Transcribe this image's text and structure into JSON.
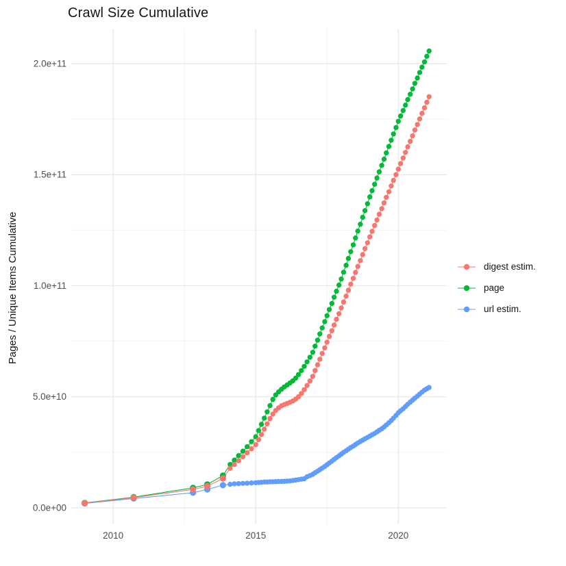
{
  "page": {
    "background_color": "#ffffff"
  },
  "chart_data": {
    "type": "line",
    "title": "Crawl Size Cumulative",
    "xlabel": "",
    "ylabel": "Pages / Unique Items Cumulative",
    "value_unit": "1e9 (values stored in billions of items)",
    "grid": {
      "on": true,
      "major_color": "#e7e7e7",
      "minor_color": "#f2f2f2"
    },
    "legend_position": "right",
    "x_axis": {
      "range": [
        2008.53,
        2021.7
      ],
      "ticks": [
        2010,
        2015,
        2020
      ],
      "tick_labels": [
        "2010",
        "2015",
        "2020"
      ],
      "minor_ticks": [
        2012.5,
        2017.5
      ]
    },
    "y_axis": {
      "range": [
        -7.4,
        215.7
      ],
      "ticks": [
        0,
        50,
        100,
        150,
        200
      ],
      "tick_labels": [
        "0.0e+00",
        "5.0e+10",
        "1.0e+11",
        "1.5e+11",
        "2.0e+11"
      ],
      "minor_ticks": [
        25,
        75,
        125,
        175
      ]
    },
    "series": [
      {
        "name": "digest estim.",
        "color": "#F8766D",
        "points": [
          [
            2009.0,
            2.1
          ],
          [
            2010.72,
            4.6
          ],
          [
            2012.8,
            8.3
          ],
          [
            2013.3,
            9.7
          ],
          [
            2013.85,
            13.2
          ],
          [
            2014.1,
            17.8
          ],
          [
            2014.25,
            19.5
          ],
          [
            2014.4,
            21.2
          ],
          [
            2014.55,
            23.0
          ],
          [
            2014.7,
            24.8
          ],
          [
            2014.85,
            26.6
          ],
          [
            2015.0,
            28.4
          ],
          [
            2015.1,
            30.7
          ],
          [
            2015.2,
            33.0
          ],
          [
            2015.3,
            35.4
          ],
          [
            2015.4,
            37.8
          ],
          [
            2015.5,
            40.2
          ],
          [
            2015.6,
            42.2
          ],
          [
            2015.7,
            43.8
          ],
          [
            2015.8,
            45.0
          ],
          [
            2015.9,
            45.9
          ],
          [
            2016.0,
            46.5
          ],
          [
            2016.1,
            47.0
          ],
          [
            2016.2,
            47.5
          ],
          [
            2016.3,
            48.1
          ],
          [
            2016.4,
            48.9
          ],
          [
            2016.5,
            50.0
          ],
          [
            2016.6,
            51.5
          ],
          [
            2016.7,
            53.2
          ],
          [
            2016.8,
            55.1
          ],
          [
            2016.9,
            57.1
          ],
          [
            2017.0,
            59.2
          ],
          [
            2017.08,
            61.8
          ],
          [
            2017.17,
            64.4
          ],
          [
            2017.25,
            66.9
          ],
          [
            2017.33,
            69.5
          ],
          [
            2017.42,
            72.0
          ],
          [
            2017.5,
            74.6
          ],
          [
            2017.58,
            77.2
          ],
          [
            2017.67,
            79.7
          ],
          [
            2017.75,
            82.3
          ],
          [
            2017.83,
            84.9
          ],
          [
            2017.92,
            87.4
          ],
          [
            2018.0,
            90.0
          ],
          [
            2018.08,
            92.7
          ],
          [
            2018.17,
            95.3
          ],
          [
            2018.25,
            98.0
          ],
          [
            2018.33,
            100.7
          ],
          [
            2018.42,
            103.3
          ],
          [
            2018.5,
            106.0
          ],
          [
            2018.58,
            108.7
          ],
          [
            2018.67,
            111.3
          ],
          [
            2018.75,
            114.0
          ],
          [
            2018.83,
            116.7
          ],
          [
            2018.92,
            119.3
          ],
          [
            2019.0,
            122.0
          ],
          [
            2019.08,
            124.5
          ],
          [
            2019.17,
            127.1
          ],
          [
            2019.25,
            129.6
          ],
          [
            2019.33,
            132.2
          ],
          [
            2019.42,
            134.7
          ],
          [
            2019.5,
            137.3
          ],
          [
            2019.58,
            139.8
          ],
          [
            2019.67,
            142.3
          ],
          [
            2019.75,
            144.9
          ],
          [
            2019.83,
            147.4
          ],
          [
            2019.92,
            150.0
          ],
          [
            2020.0,
            152.5
          ],
          [
            2020.08,
            155.0
          ],
          [
            2020.17,
            157.5
          ],
          [
            2020.25,
            160.0
          ],
          [
            2020.33,
            162.5
          ],
          [
            2020.42,
            165.0
          ],
          [
            2020.5,
            167.5
          ],
          [
            2020.58,
            170.1
          ],
          [
            2020.67,
            172.6
          ],
          [
            2020.75,
            175.1
          ],
          [
            2020.83,
            177.6
          ],
          [
            2020.92,
            180.1
          ],
          [
            2021.0,
            182.6
          ],
          [
            2021.08,
            185.1
          ]
        ]
      },
      {
        "name": "page",
        "color": "#00BA38",
        "points": [
          [
            2009.0,
            2.2
          ],
          [
            2010.72,
            4.8
          ],
          [
            2012.8,
            9.0
          ],
          [
            2013.3,
            10.5
          ],
          [
            2013.85,
            14.5
          ],
          [
            2014.1,
            19.5
          ],
          [
            2014.25,
            21.5
          ],
          [
            2014.4,
            23.5
          ],
          [
            2014.55,
            25.5
          ],
          [
            2014.7,
            27.5
          ],
          [
            2014.85,
            29.8
          ],
          [
            2015.0,
            32.0
          ],
          [
            2015.1,
            34.8
          ],
          [
            2015.2,
            37.6
          ],
          [
            2015.3,
            40.4
          ],
          [
            2015.4,
            43.2
          ],
          [
            2015.5,
            46.0
          ],
          [
            2015.6,
            48.8
          ],
          [
            2015.7,
            50.8
          ],
          [
            2015.8,
            52.2
          ],
          [
            2015.9,
            53.4
          ],
          [
            2016.0,
            54.4
          ],
          [
            2016.1,
            55.3
          ],
          [
            2016.2,
            56.2
          ],
          [
            2016.3,
            57.2
          ],
          [
            2016.4,
            58.4
          ],
          [
            2016.5,
            60.0
          ],
          [
            2016.6,
            61.8
          ],
          [
            2016.7,
            63.7
          ],
          [
            2016.8,
            65.7
          ],
          [
            2016.9,
            67.8
          ],
          [
            2017.0,
            70.0
          ],
          [
            2017.08,
            72.8
          ],
          [
            2017.17,
            75.5
          ],
          [
            2017.25,
            78.3
          ],
          [
            2017.33,
            81.0
          ],
          [
            2017.42,
            83.8
          ],
          [
            2017.5,
            86.5
          ],
          [
            2017.58,
            89.3
          ],
          [
            2017.67,
            92.0
          ],
          [
            2017.75,
            94.8
          ],
          [
            2017.83,
            97.5
          ],
          [
            2017.92,
            100.3
          ],
          [
            2018.0,
            103.0
          ],
          [
            2018.08,
            106.1
          ],
          [
            2018.17,
            109.2
          ],
          [
            2018.25,
            112.3
          ],
          [
            2018.33,
            115.3
          ],
          [
            2018.42,
            118.4
          ],
          [
            2018.5,
            121.5
          ],
          [
            2018.58,
            124.6
          ],
          [
            2018.67,
            127.7
          ],
          [
            2018.75,
            130.8
          ],
          [
            2018.83,
            133.8
          ],
          [
            2018.92,
            136.9
          ],
          [
            2019.0,
            140.0
          ],
          [
            2019.08,
            142.8
          ],
          [
            2019.17,
            145.7
          ],
          [
            2019.25,
            148.5
          ],
          [
            2019.33,
            151.3
          ],
          [
            2019.42,
            154.2
          ],
          [
            2019.5,
            157.0
          ],
          [
            2019.58,
            159.8
          ],
          [
            2019.67,
            162.7
          ],
          [
            2019.75,
            165.5
          ],
          [
            2019.83,
            168.3
          ],
          [
            2019.92,
            171.2
          ],
          [
            2020.0,
            174.0
          ],
          [
            2020.08,
            176.4
          ],
          [
            2020.17,
            178.9
          ],
          [
            2020.25,
            181.3
          ],
          [
            2020.33,
            183.8
          ],
          [
            2020.42,
            186.2
          ],
          [
            2020.5,
            188.6
          ],
          [
            2020.58,
            191.1
          ],
          [
            2020.67,
            193.5
          ],
          [
            2020.75,
            196.0
          ],
          [
            2020.83,
            198.4
          ],
          [
            2020.92,
            200.8
          ],
          [
            2021.0,
            203.3
          ],
          [
            2021.08,
            205.7
          ]
        ]
      },
      {
        "name": "url estim.",
        "color": "#619CFF",
        "points": [
          [
            2009.0,
            2.0
          ],
          [
            2010.72,
            4.2
          ],
          [
            2012.8,
            6.8
          ],
          [
            2013.3,
            8.3
          ],
          [
            2013.85,
            10.2
          ],
          [
            2014.1,
            10.6
          ],
          [
            2014.25,
            10.8
          ],
          [
            2014.4,
            10.9
          ],
          [
            2014.55,
            11.0
          ],
          [
            2014.7,
            11.1
          ],
          [
            2014.85,
            11.2
          ],
          [
            2015.0,
            11.3
          ],
          [
            2015.1,
            11.4
          ],
          [
            2015.2,
            11.5
          ],
          [
            2015.3,
            11.6
          ],
          [
            2015.4,
            11.65
          ],
          [
            2015.5,
            11.7
          ],
          [
            2015.6,
            11.75
          ],
          [
            2015.7,
            11.8
          ],
          [
            2015.8,
            11.85
          ],
          [
            2015.9,
            11.9
          ],
          [
            2016.0,
            11.95
          ],
          [
            2016.1,
            12.0
          ],
          [
            2016.2,
            12.1
          ],
          [
            2016.3,
            12.3
          ],
          [
            2016.4,
            12.5
          ],
          [
            2016.5,
            12.7
          ],
          [
            2016.6,
            12.9
          ],
          [
            2016.7,
            13.1
          ],
          [
            2016.8,
            14.0
          ],
          [
            2016.9,
            14.5
          ],
          [
            2017.0,
            15.1
          ],
          [
            2017.08,
            15.8
          ],
          [
            2017.17,
            16.5
          ],
          [
            2017.25,
            17.2
          ],
          [
            2017.33,
            17.9
          ],
          [
            2017.42,
            18.6
          ],
          [
            2017.5,
            19.4
          ],
          [
            2017.58,
            20.2
          ],
          [
            2017.67,
            21.0
          ],
          [
            2017.75,
            21.8
          ],
          [
            2017.83,
            22.6
          ],
          [
            2017.92,
            23.4
          ],
          [
            2018.0,
            24.2
          ],
          [
            2018.08,
            25.0
          ],
          [
            2018.17,
            25.7
          ],
          [
            2018.25,
            26.4
          ],
          [
            2018.33,
            27.1
          ],
          [
            2018.42,
            27.8
          ],
          [
            2018.5,
            28.5
          ],
          [
            2018.58,
            29.2
          ],
          [
            2018.67,
            29.9
          ],
          [
            2018.75,
            30.5
          ],
          [
            2018.83,
            31.1
          ],
          [
            2018.92,
            31.7
          ],
          [
            2019.0,
            32.3
          ],
          [
            2019.08,
            32.9
          ],
          [
            2019.17,
            33.5
          ],
          [
            2019.25,
            34.2
          ],
          [
            2019.33,
            34.9
          ],
          [
            2019.42,
            35.6
          ],
          [
            2019.5,
            36.4
          ],
          [
            2019.58,
            37.3
          ],
          [
            2019.67,
            38.3
          ],
          [
            2019.75,
            39.3
          ],
          [
            2019.83,
            40.4
          ],
          [
            2019.92,
            41.6
          ],
          [
            2020.0,
            42.8
          ],
          [
            2020.08,
            43.7
          ],
          [
            2020.17,
            44.6
          ],
          [
            2020.25,
            45.6
          ],
          [
            2020.33,
            46.6
          ],
          [
            2020.42,
            47.6
          ],
          [
            2020.5,
            48.5
          ],
          [
            2020.58,
            49.4
          ],
          [
            2020.67,
            50.3
          ],
          [
            2020.75,
            51.2
          ],
          [
            2020.83,
            52.1
          ],
          [
            2020.92,
            53.0
          ],
          [
            2021.0,
            53.6
          ],
          [
            2021.08,
            54.2
          ]
        ]
      }
    ]
  }
}
